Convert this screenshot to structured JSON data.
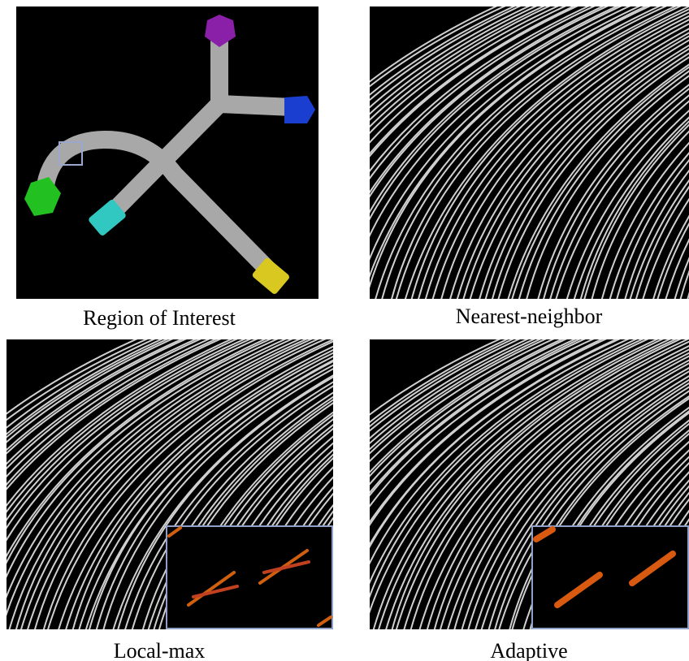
{
  "figure": {
    "panels": [
      {
        "caption": "Region of Interest"
      },
      {
        "caption": "Nearest-neighbor"
      },
      {
        "caption": "Local-max"
      },
      {
        "caption": "Adaptive"
      }
    ]
  }
}
